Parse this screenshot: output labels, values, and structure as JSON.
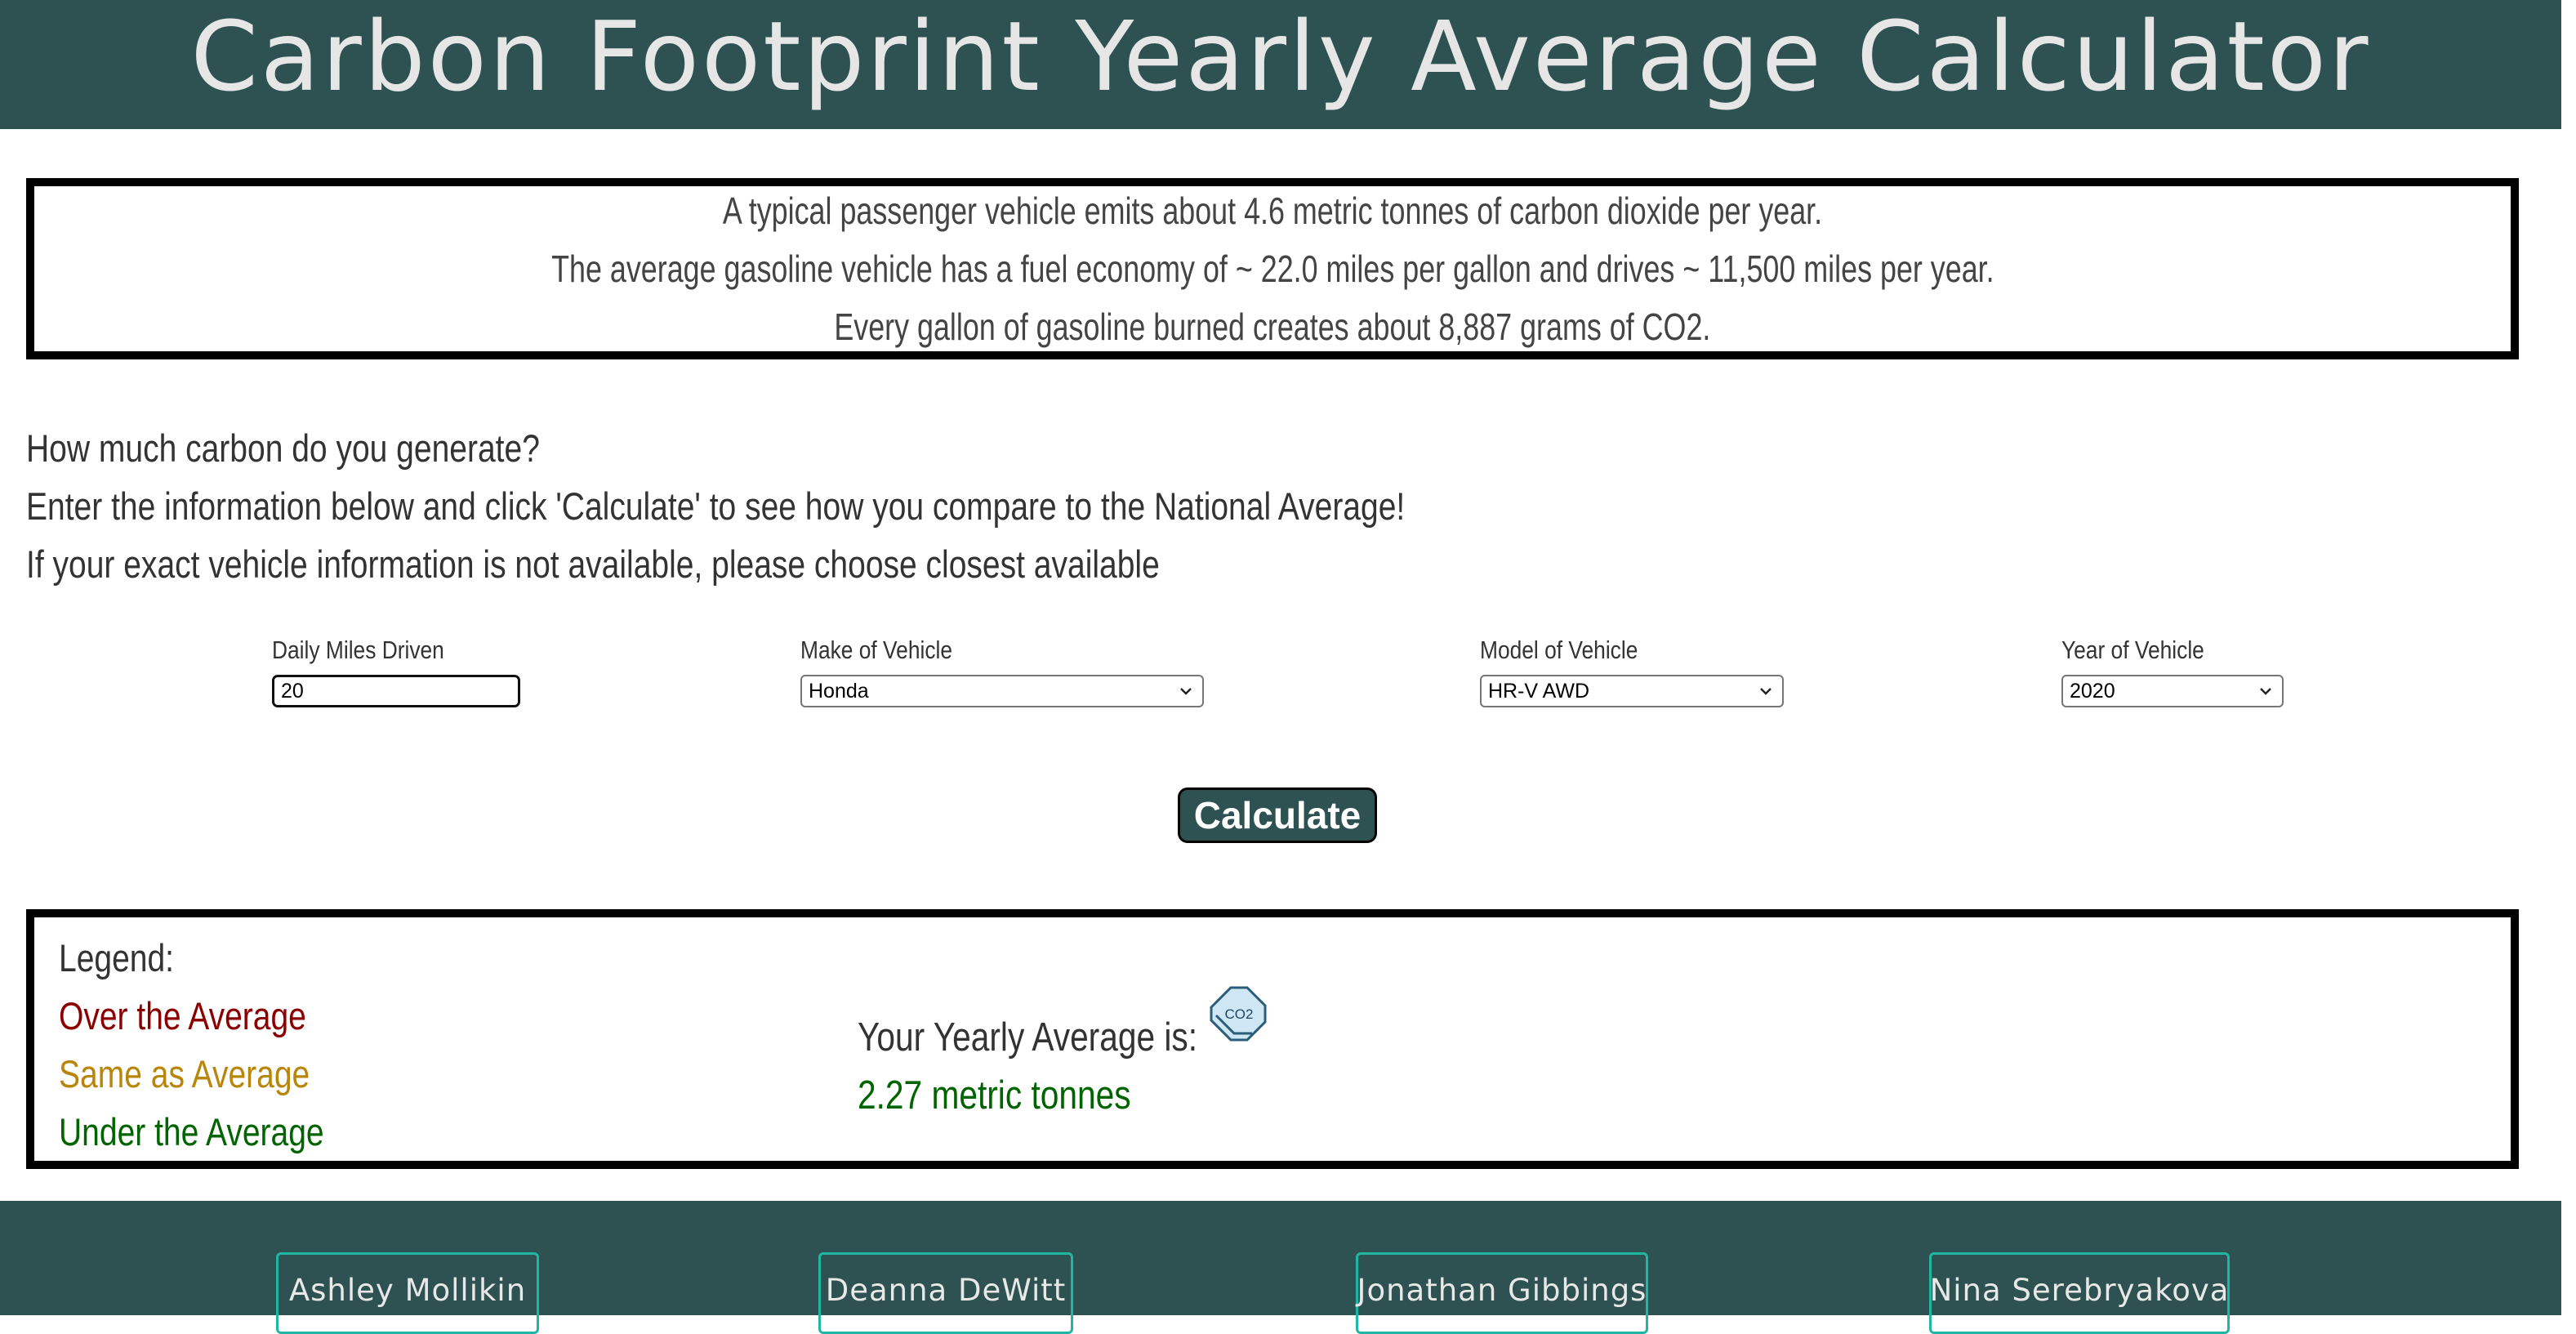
{
  "header": {
    "title": "Carbon Footprint Yearly Average Calculator"
  },
  "facts": [
    "A typical passenger vehicle emits about 4.6 metric tonnes of carbon dioxide per year.",
    "The average gasoline vehicle has a fuel economy of ~ 22.0 miles per gallon and drives ~ 11,500 miles per year.",
    "Every gallon of gasoline burned creates about 8,887 grams of CO2."
  ],
  "intro": [
    "How much carbon do you generate?",
    "Enter the information below and click 'Calculate' to see how you compare to the National Average!",
    "If your exact vehicle information is not available, please choose closest available"
  ],
  "form": {
    "miles": {
      "label": "Daily Miles Driven",
      "value": "20"
    },
    "make": {
      "label": "Make of Vehicle",
      "value": "Honda"
    },
    "model": {
      "label": "Model of Vehicle",
      "value": "HR-V AWD"
    },
    "year": {
      "label": "Year of Vehicle",
      "value": "2020"
    },
    "calculate_label": "Calculate"
  },
  "legend": {
    "title": "Legend:",
    "over": "Over the Average",
    "same": "Same as Average",
    "under": "Under the Average"
  },
  "result": {
    "heading": "Your Yearly Average is:",
    "value": "2.27 metric tonnes",
    "icon": "co2-icon",
    "icon_text": "CO2"
  },
  "footer": {
    "names": [
      "Ashley Mollikin",
      "Deanna DeWitt",
      "Jonathan Gibbings",
      "Nina Serebryakova"
    ]
  },
  "colors": {
    "primary": "#2e5152",
    "over": "#8b0000",
    "same": "#b8860b",
    "under": "#006400",
    "button_border": "#20b6a4"
  }
}
